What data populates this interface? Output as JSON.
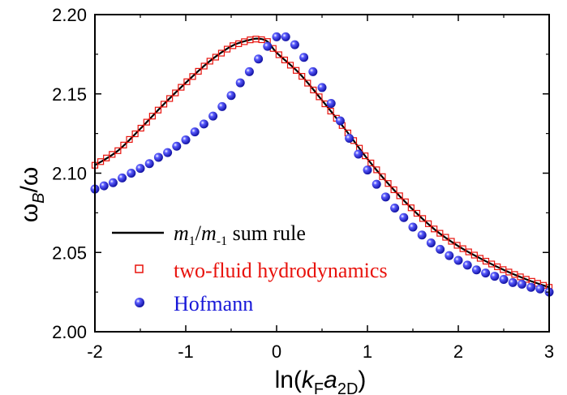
{
  "chart_data": {
    "type": "line",
    "xlabel": {
      "prefix": "ln(",
      "main1": "k",
      "sub1": "F",
      "main2": "a",
      "sub2": "2D",
      "suffix": ")"
    },
    "ylabel": {
      "main": "ω",
      "sub": "B",
      "rest": "/ω"
    },
    "xlim": [
      -2,
      3
    ],
    "ylim": [
      2.0,
      2.2
    ],
    "x_ticks": [
      -2,
      -1,
      0,
      1,
      2,
      3
    ],
    "x_tick_labels": [
      "-2",
      "-1",
      "0",
      "1",
      "2",
      "3"
    ],
    "y_ticks": [
      2.0,
      2.05,
      2.1,
      2.15,
      2.2
    ],
    "y_tick_labels": [
      "2.00",
      "2.05",
      "2.10",
      "2.15",
      "2.20"
    ],
    "grid": false,
    "legend_position": "bottom-left",
    "colors": {
      "sum_rule": "#000000",
      "two_fluid": "#e8120c",
      "hofmann": "#1717d8"
    },
    "series": [
      {
        "key": "sum_rule",
        "name": "m1/m-1 sum rule",
        "legend": {
          "m": "m",
          "s1": "1",
          "slash": "/",
          "m2": "m",
          "s2": "-1",
          "rest": " sum rule"
        },
        "style": "line",
        "points": [
          [
            -2.0,
            2.105
          ],
          [
            -1.75,
            2.114
          ],
          [
            -1.5,
            2.128
          ],
          [
            -1.25,
            2.143
          ],
          [
            -1.0,
            2.157
          ],
          [
            -0.75,
            2.17
          ],
          [
            -0.5,
            2.18
          ],
          [
            -0.3,
            2.184
          ],
          [
            -0.2,
            2.1848
          ],
          [
            -0.1,
            2.183
          ],
          [
            0.0,
            2.176
          ],
          [
            0.25,
            2.163
          ],
          [
            0.5,
            2.146
          ],
          [
            0.75,
            2.128
          ],
          [
            1.0,
            2.109
          ],
          [
            1.25,
            2.092
          ],
          [
            1.5,
            2.077
          ],
          [
            1.75,
            2.064
          ],
          [
            2.0,
            2.054
          ],
          [
            2.25,
            2.046
          ],
          [
            2.5,
            2.039
          ],
          [
            2.75,
            2.033
          ],
          [
            3.0,
            2.028
          ]
        ]
      },
      {
        "key": "two_fluid",
        "name": "two-fluid hydrodynamics",
        "style": "open-square",
        "points": [
          [
            -2.0,
            2.105
          ],
          [
            -1.75,
            2.114
          ],
          [
            -1.5,
            2.128
          ],
          [
            -1.25,
            2.143
          ],
          [
            -1.0,
            2.157
          ],
          [
            -0.75,
            2.17
          ],
          [
            -0.5,
            2.18
          ],
          [
            -0.3,
            2.184
          ],
          [
            -0.2,
            2.1848
          ],
          [
            -0.1,
            2.183
          ],
          [
            0.0,
            2.176
          ],
          [
            0.25,
            2.163
          ],
          [
            0.5,
            2.146
          ],
          [
            0.75,
            2.128
          ],
          [
            1.0,
            2.109
          ],
          [
            1.25,
            2.092
          ],
          [
            1.5,
            2.077
          ],
          [
            1.75,
            2.064
          ],
          [
            2.0,
            2.054
          ],
          [
            2.25,
            2.046
          ],
          [
            2.5,
            2.039
          ],
          [
            2.75,
            2.033
          ],
          [
            3.0,
            2.028
          ]
        ]
      },
      {
        "key": "hofmann",
        "name": "Hofmann",
        "style": "sphere",
        "points": [
          [
            -2.0,
            2.09
          ],
          [
            -1.9,
            2.092
          ],
          [
            -1.8,
            2.094
          ],
          [
            -1.7,
            2.097
          ],
          [
            -1.6,
            2.1
          ],
          [
            -1.5,
            2.103
          ],
          [
            -1.4,
            2.106
          ],
          [
            -1.3,
            2.11
          ],
          [
            -1.2,
            2.113
          ],
          [
            -1.1,
            2.117
          ],
          [
            -1.0,
            2.121
          ],
          [
            -0.9,
            2.126
          ],
          [
            -0.8,
            2.131
          ],
          [
            -0.7,
            2.136
          ],
          [
            -0.6,
            2.142
          ],
          [
            -0.5,
            2.149
          ],
          [
            -0.4,
            2.157
          ],
          [
            -0.3,
            2.164
          ],
          [
            -0.2,
            2.172
          ],
          [
            -0.1,
            2.18
          ],
          [
            0.0,
            2.186
          ],
          [
            0.1,
            2.186
          ],
          [
            0.2,
            2.181
          ],
          [
            0.3,
            2.173
          ],
          [
            0.4,
            2.164
          ],
          [
            0.5,
            2.154
          ],
          [
            0.6,
            2.144
          ],
          [
            0.7,
            2.133
          ],
          [
            0.8,
            2.122
          ],
          [
            0.9,
            2.112
          ],
          [
            1.0,
            2.102
          ],
          [
            1.1,
            2.093
          ],
          [
            1.2,
            2.085
          ],
          [
            1.3,
            2.078
          ],
          [
            1.4,
            2.072
          ],
          [
            1.5,
            2.066
          ],
          [
            1.6,
            2.061
          ],
          [
            1.7,
            2.056
          ],
          [
            1.8,
            2.052
          ],
          [
            1.9,
            2.048
          ],
          [
            2.0,
            2.045
          ],
          [
            2.1,
            2.042
          ],
          [
            2.2,
            2.039
          ],
          [
            2.3,
            2.037
          ],
          [
            2.4,
            2.035
          ],
          [
            2.5,
            2.033
          ],
          [
            2.6,
            2.031
          ],
          [
            2.7,
            2.03
          ],
          [
            2.8,
            2.028
          ],
          [
            2.9,
            2.027
          ],
          [
            3.0,
            2.025
          ]
        ]
      }
    ]
  }
}
